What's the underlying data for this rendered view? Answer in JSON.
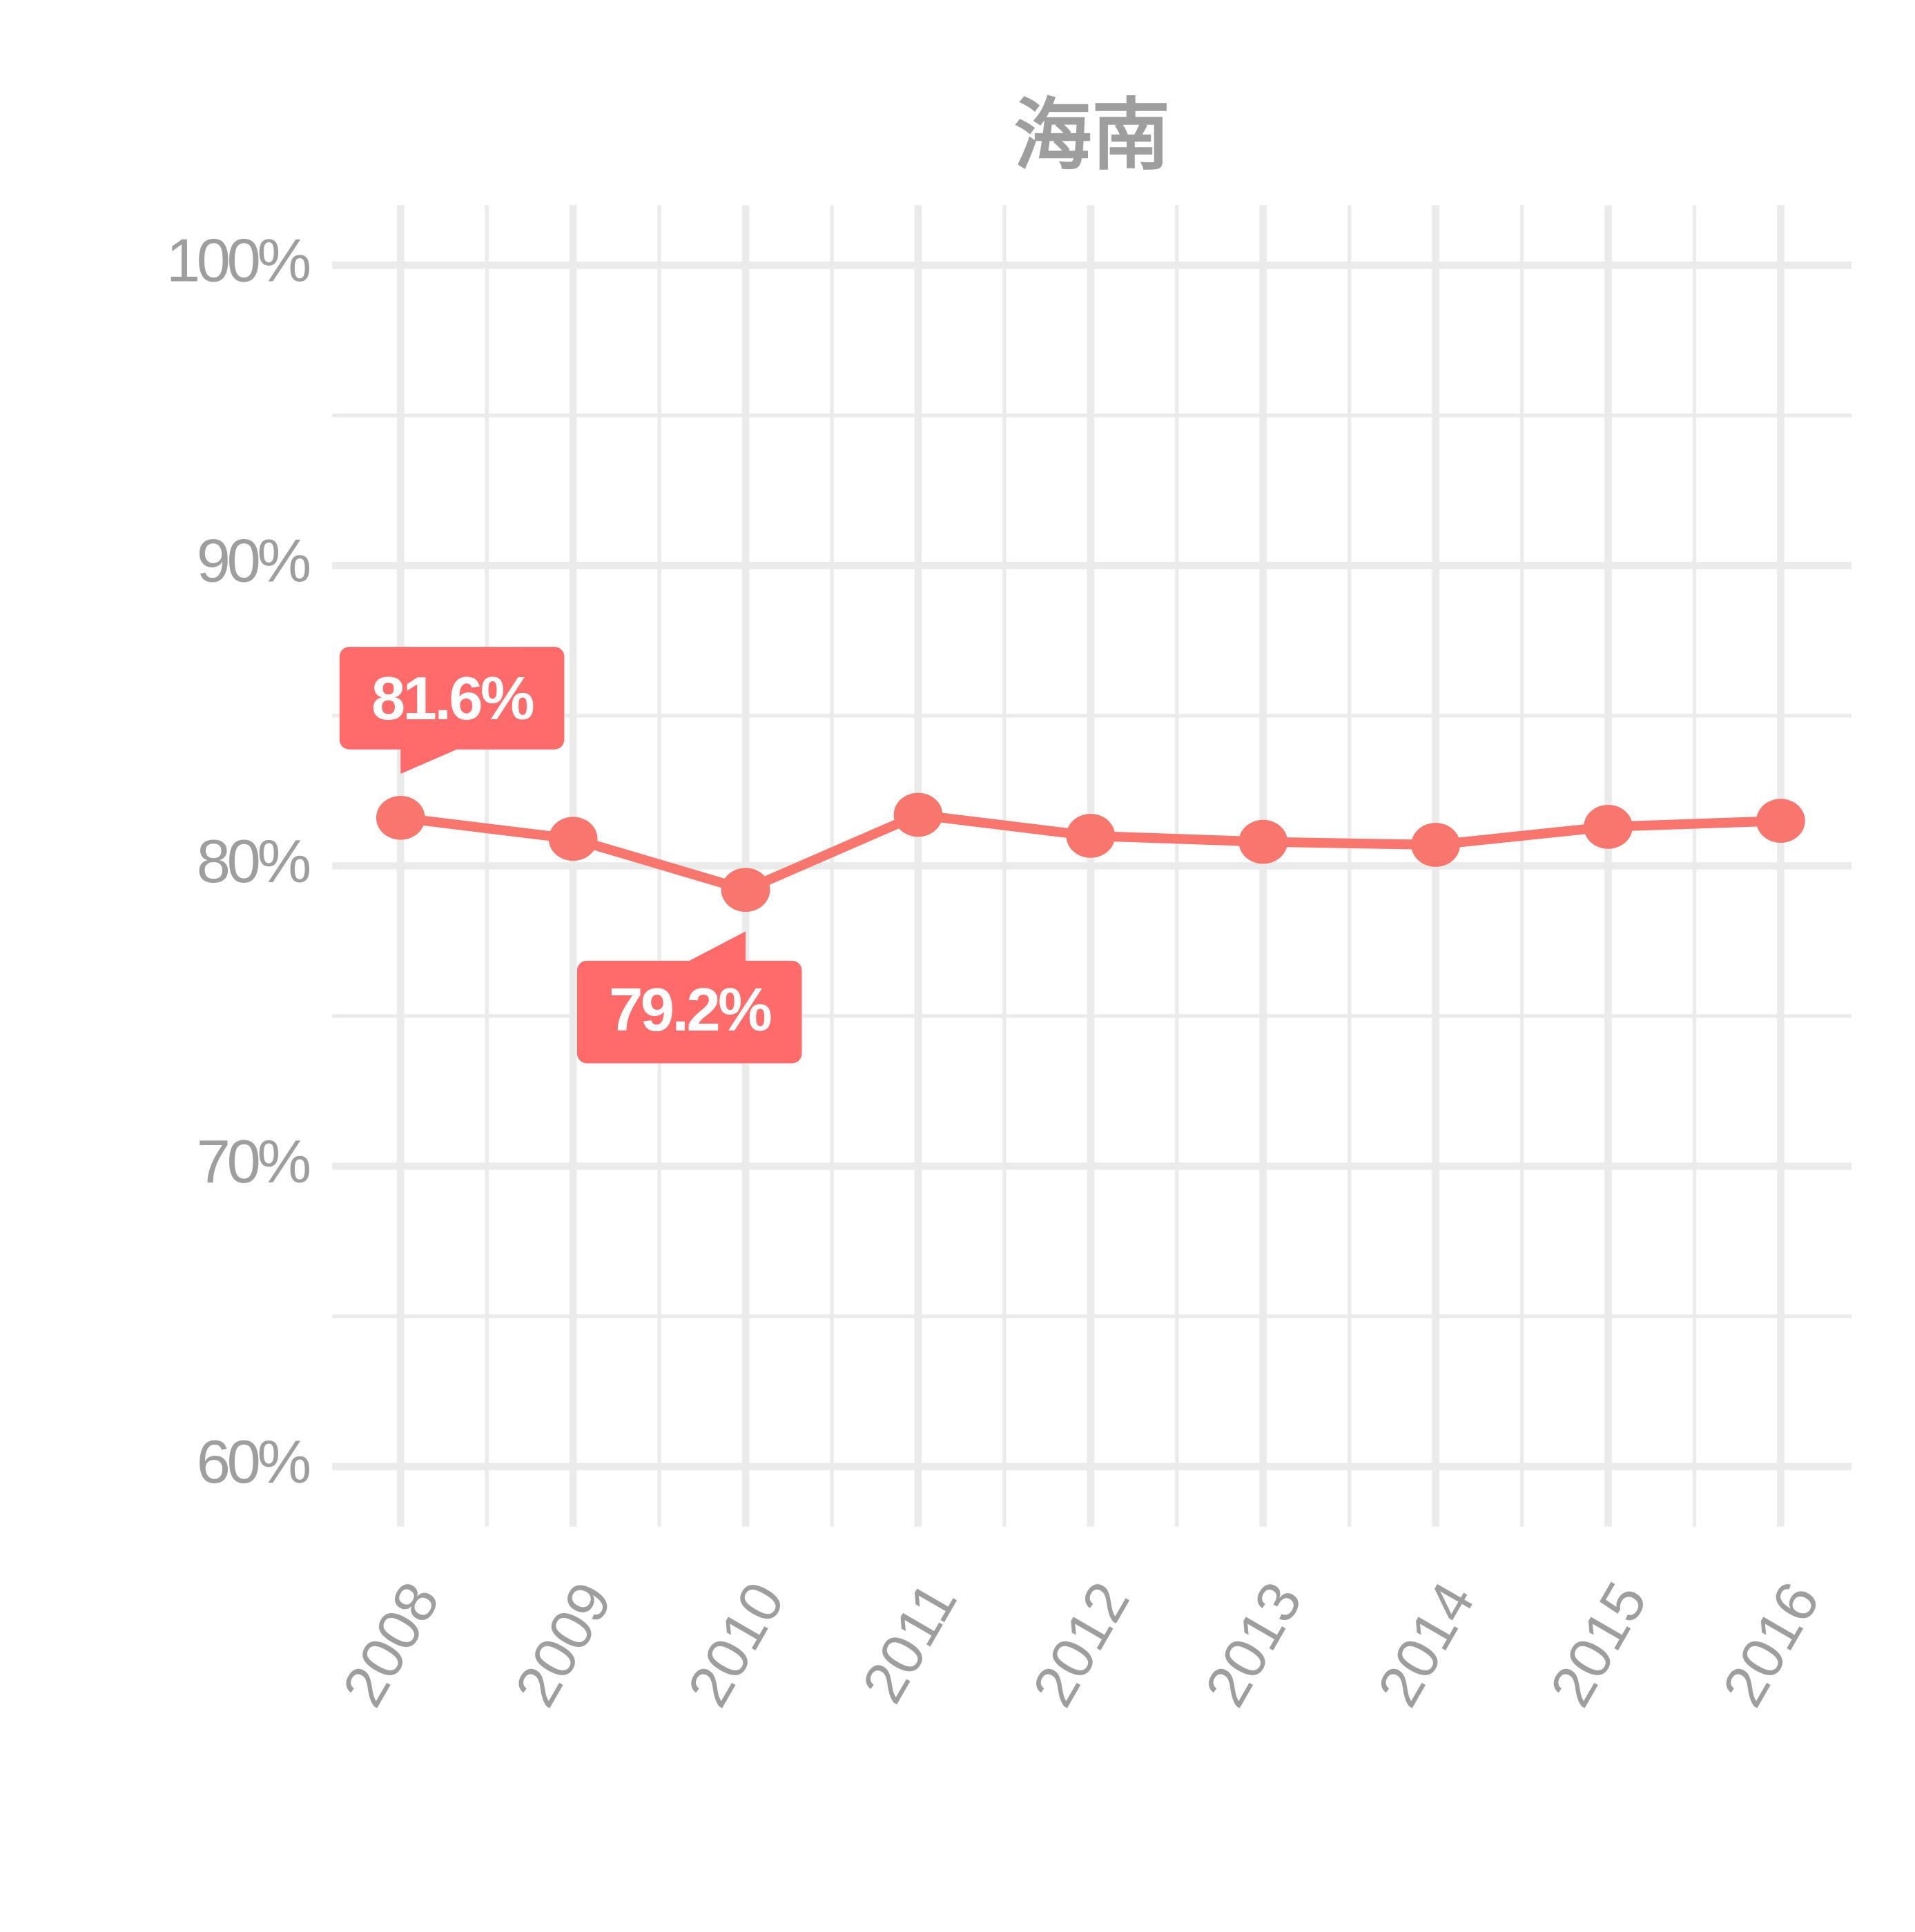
{
  "chart_data": {
    "type": "line",
    "title": "海南",
    "categories": [
      "2008",
      "2009",
      "2010",
      "2011",
      "2012",
      "2013",
      "2014",
      "2015",
      "2016"
    ],
    "series": [
      {
        "color": "#f8766d",
        "values": [
          81.6,
          80.9,
          79.2,
          81.7,
          81.0,
          80.8,
          80.7,
          81.3,
          81.5
        ],
        "value_labels": [
          "81.6%",
          null,
          "79.2%",
          null,
          null,
          null,
          null,
          null,
          null
        ]
      }
    ],
    "label_color": "#ff6b6b",
    "ylim": [
      58,
      102
    ],
    "yticks": [
      {
        "value": 60,
        "label": "60%"
      },
      {
        "value": 70,
        "label": "70%"
      },
      {
        "value": 80,
        "label": "80%"
      },
      {
        "value": 90,
        "label": "90%"
      },
      {
        "value": 100,
        "label": "100%"
      }
    ],
    "grid": true
  }
}
